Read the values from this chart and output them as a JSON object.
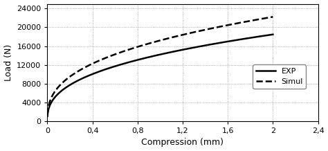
{
  "title": "",
  "xlabel": "Compression (mm)",
  "ylabel": "Load (N)",
  "xlim": [
    0,
    2.4
  ],
  "ylim": [
    0,
    25000
  ],
  "xticks": [
    0,
    0.4,
    0.8,
    1.2,
    1.6,
    2.0,
    2.4
  ],
  "yticks": [
    0,
    4000,
    8000,
    12000,
    16000,
    20000,
    24000
  ],
  "xtick_labels": [
    "0",
    "0,4",
    "0,8",
    "1,2",
    "1,6",
    "2",
    "2,4"
  ],
  "ytick_labels": [
    "0",
    "4000",
    "8000",
    "12000",
    "16000",
    "20000",
    "24000"
  ],
  "exp_color": "#000000",
  "simul_color": "#000000",
  "exp_linestyle": "solid",
  "simul_linestyle": "dashed",
  "exp_linewidth": 1.8,
  "simul_linewidth": 1.8,
  "exp_label": "EXP",
  "simul_label": "Simul",
  "background_color": "#ffffff",
  "grid_color": "#999999",
  "exp_coef": 14200,
  "exp_power": 0.38,
  "simul_coef": 17200,
  "simul_power": 0.37,
  "font_size_ticks": 8,
  "font_size_labels": 9
}
